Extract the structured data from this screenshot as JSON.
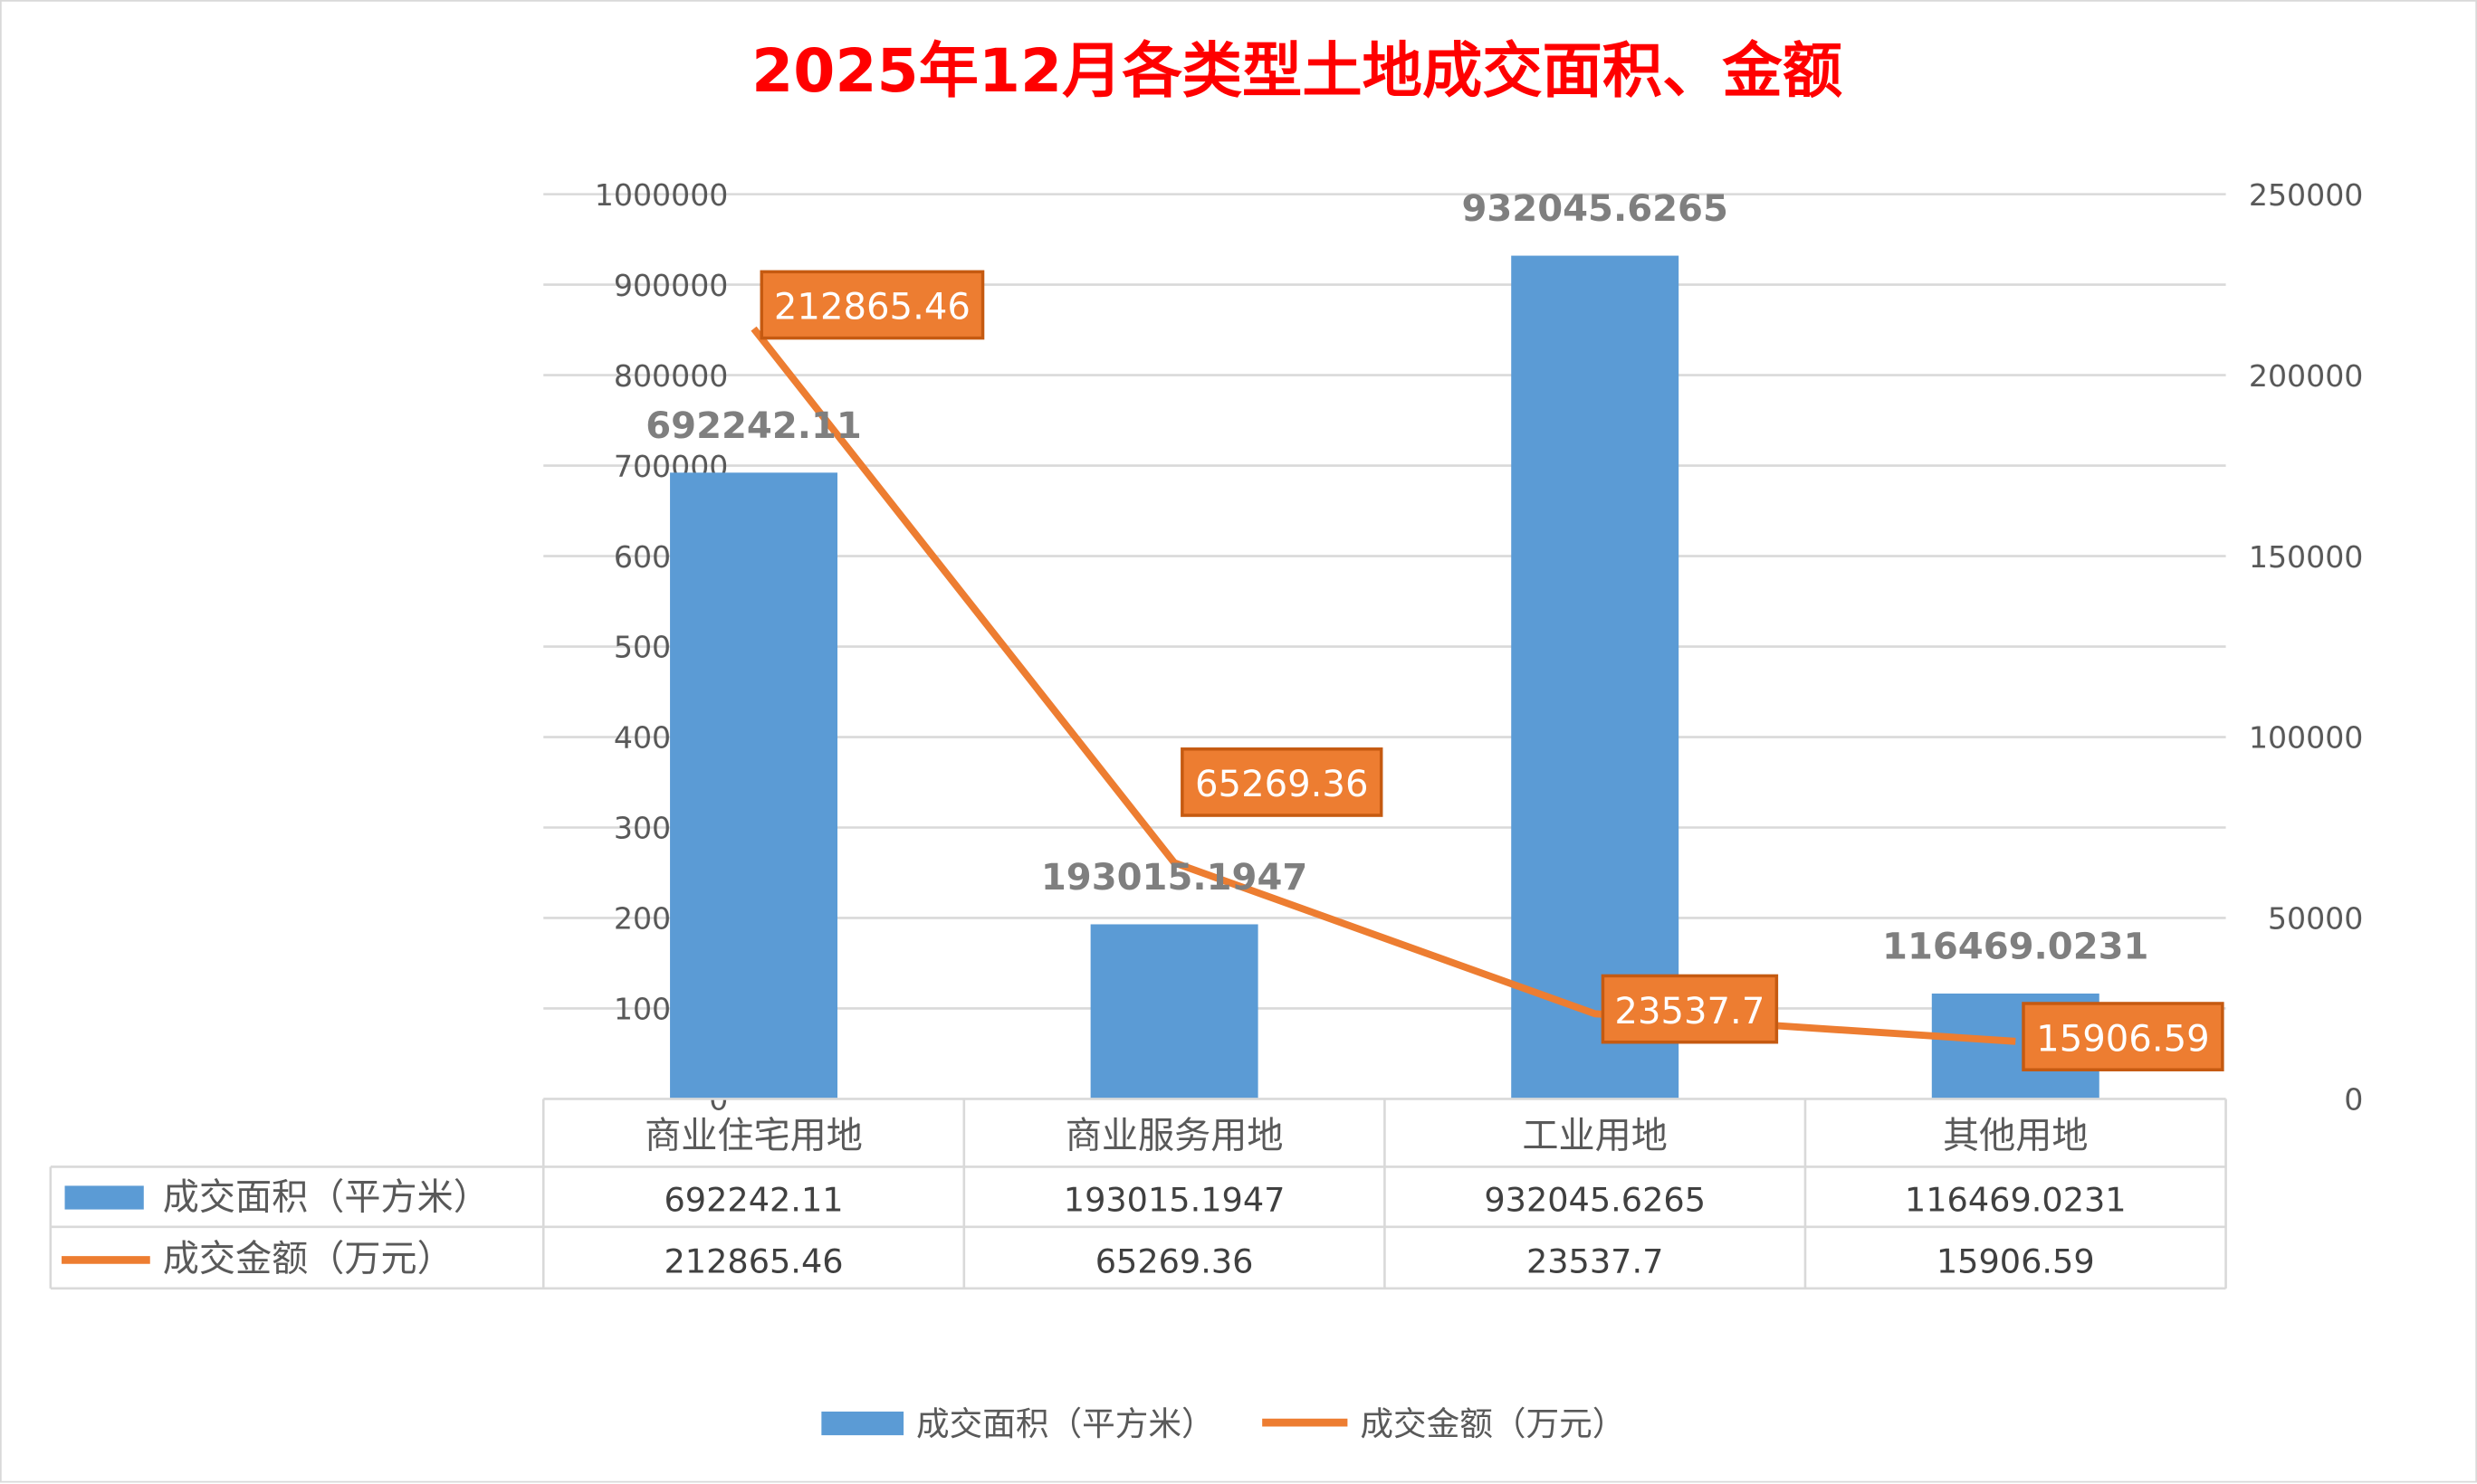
{
  "chart_data": {
    "type": "bar+line",
    "title": "2025年12月各类型土地成交面积、金额",
    "categories": [
      "商业住宅用地",
      "商业服务用地",
      "工业用地",
      "其他用地"
    ],
    "series": [
      {
        "name": "成交面积（平方米）",
        "type": "bar",
        "axis": "left",
        "color": "#5B9BD5",
        "values": [
          692242.11,
          193015.1947,
          932045.6265,
          116469.0231
        ],
        "labels": [
          "692242.11",
          "193015.1947",
          "932045.6265",
          "116469.0231"
        ]
      },
      {
        "name": "成交金额（万元）",
        "type": "line",
        "axis": "right",
        "color": "#ED7D31",
        "values": [
          212865.46,
          65269.36,
          23537.7,
          15906.59
        ],
        "labels": [
          "212865.46",
          "65269.36",
          "23537.7",
          "15906.59"
        ]
      }
    ],
    "left_axis": {
      "min": 0,
      "max": 1000000,
      "step": 100000,
      "ticks": [
        "0",
        "100000",
        "200000",
        "300000",
        "400000",
        "500000",
        "600000",
        "700000",
        "800000",
        "900000",
        "1000000"
      ]
    },
    "right_axis": {
      "min": 0,
      "max": 250000,
      "step": 50000,
      "ticks": [
        "0",
        "50000",
        "100000",
        "150000",
        "200000",
        "250000"
      ]
    },
    "grid": true,
    "legend": "bottom",
    "data_table": true
  }
}
